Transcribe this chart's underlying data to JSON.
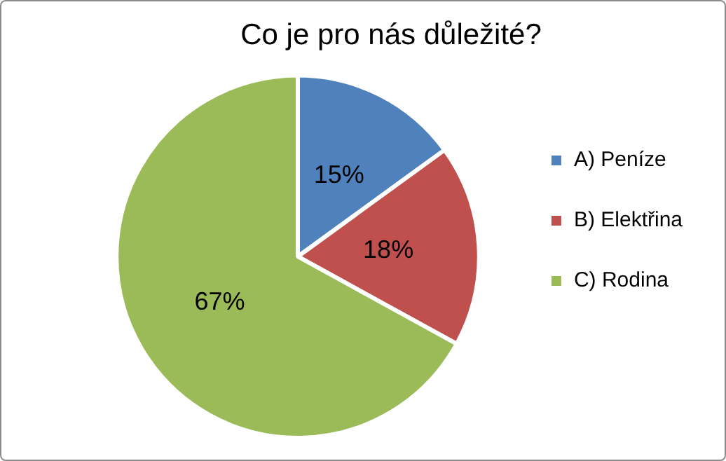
{
  "chart_data": {
    "type": "pie",
    "title": "Co je pro nás důležité?",
    "categories": [
      "A) Peníze",
      "B) Elektřina",
      "C) Rodina"
    ],
    "values": [
      15,
      18,
      67
    ],
    "colors": [
      "#4f81bd",
      "#c0504d",
      "#9bbb59"
    ],
    "value_labels": [
      "15%",
      "18%",
      "67%"
    ],
    "legend": "right"
  }
}
